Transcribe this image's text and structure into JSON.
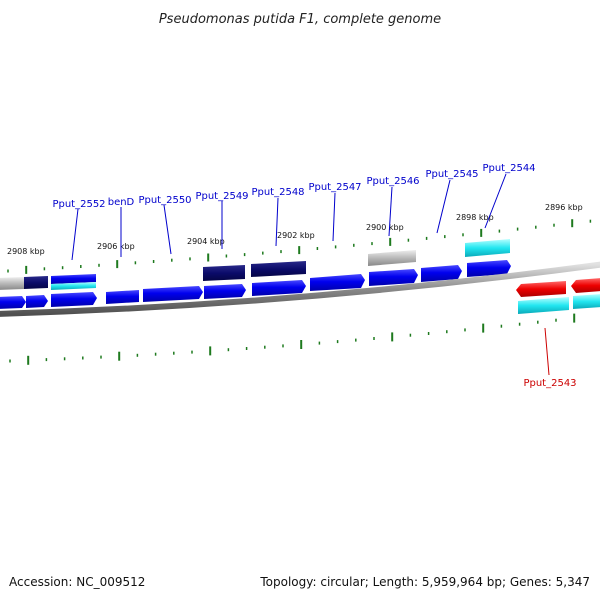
{
  "title": "Pseudomonas putida F1, complete genome",
  "footer": {
    "accession": "Accession: NC_009512",
    "summary": "Topology: circular; Length: 5,959,964 bp; Genes: 5,347"
  },
  "colors": {
    "backbone": "#7f7f7f",
    "tick": "#1e7a1e",
    "label_forward": "#0000cc",
    "label_reverse": "#cc0000"
  },
  "ticks": [
    {
      "kbp": 2908,
      "label": "2908 kbp"
    },
    {
      "kbp": 2906,
      "label": "2906 kbp"
    },
    {
      "kbp": 2904,
      "label": "2904 kbp"
    },
    {
      "kbp": 2902,
      "label": "2902 kbp"
    },
    {
      "kbp": 2900,
      "label": "2900 kbp"
    },
    {
      "kbp": 2898,
      "label": "2898 kbp"
    },
    {
      "kbp": 2896,
      "label": "2896 kbp"
    }
  ],
  "gene_labels": [
    {
      "text": "Pput_2552",
      "strand": "forward"
    },
    {
      "text": "benD",
      "strand": "forward"
    },
    {
      "text": "Pput_2550",
      "strand": "forward"
    },
    {
      "text": "Pput_2549",
      "strand": "forward"
    },
    {
      "text": "Pput_2548",
      "strand": "forward"
    },
    {
      "text": "Pput_2547",
      "strand": "forward"
    },
    {
      "text": "Pput_2546",
      "strand": "forward"
    },
    {
      "text": "Pput_2545",
      "strand": "forward"
    },
    {
      "text": "Pput_2544",
      "strand": "forward"
    },
    {
      "text": "Pput_2543",
      "strand": "reverse"
    }
  ]
}
